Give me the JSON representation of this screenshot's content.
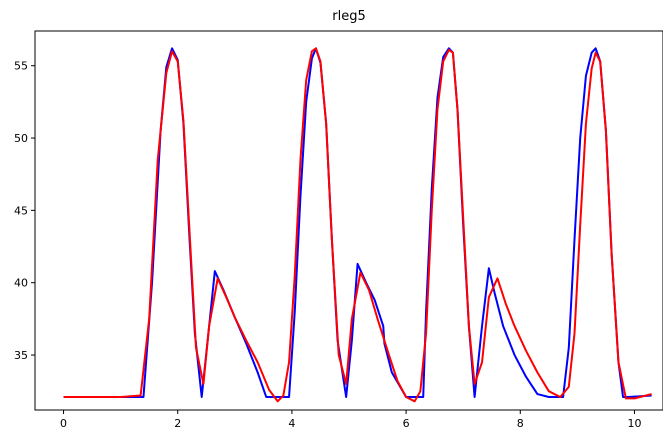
{
  "chart_data": {
    "type": "line",
    "title": "rleg5",
    "xlabel": "",
    "ylabel": "",
    "xlim": [
      -0.5,
      10.5
    ],
    "ylim": [
      31.2,
      57.4
    ],
    "xticks": [
      0,
      2,
      4,
      6,
      8,
      10
    ],
    "yticks": [
      35,
      40,
      45,
      50,
      55
    ],
    "grid": false,
    "series": [
      {
        "color": "#0000ff",
        "x": [
          0,
          1.0,
          1.4,
          1.55,
          1.7,
          1.8,
          1.9,
          2.0,
          2.1,
          2.2,
          2.3,
          2.42,
          2.55,
          2.65,
          2.8,
          3.0,
          3.2,
          3.4,
          3.55,
          3.8,
          3.95,
          4.05,
          4.15,
          4.25,
          4.35,
          4.42,
          4.5,
          4.6,
          4.7,
          4.8,
          4.95,
          5.05,
          5.15,
          5.3,
          5.45,
          5.6,
          5.62,
          5.75,
          6.0,
          6.3,
          6.35,
          6.45,
          6.55,
          6.65,
          6.75,
          6.82,
          6.9,
          7.0,
          7.1,
          7.2,
          7.33,
          7.45,
          7.55,
          7.7,
          7.9,
          8.1,
          8.3,
          8.5,
          8.75,
          8.85,
          8.95,
          9.05,
          9.15,
          9.25,
          9.32,
          9.4,
          9.5,
          9.6,
          9.72,
          9.8,
          9.9,
          10.3
        ],
        "y": [
          32.1,
          32.1,
          32.1,
          40.0,
          50.5,
          54.9,
          56.2,
          55.4,
          51.0,
          43.5,
          36.5,
          32.1,
          37.0,
          40.8,
          39.5,
          37.6,
          35.8,
          33.8,
          32.1,
          32.1,
          32.1,
          38.0,
          46.0,
          52.5,
          55.5,
          56.2,
          55.2,
          51.0,
          43.0,
          36.0,
          32.1,
          36.0,
          41.3,
          40.0,
          38.8,
          37.0,
          35.8,
          33.8,
          32.1,
          32.1,
          38.0,
          46.5,
          52.8,
          55.6,
          56.2,
          55.9,
          52.0,
          44.0,
          37.0,
          32.1,
          37.0,
          41.0,
          39.3,
          37.0,
          35.0,
          33.5,
          32.3,
          32.1,
          32.1,
          35.5,
          43.0,
          50.0,
          54.3,
          55.9,
          56.2,
          55.3,
          50.5,
          42.0,
          34.5,
          32.1,
          32.1,
          32.2
        ]
      },
      {
        "color": "#ff0000",
        "x": [
          0,
          1.0,
          1.35,
          1.5,
          1.65,
          1.8,
          1.9,
          2.0,
          2.1,
          2.2,
          2.32,
          2.45,
          2.55,
          2.7,
          2.85,
          3.0,
          3.2,
          3.4,
          3.6,
          3.75,
          3.85,
          3.95,
          4.05,
          4.15,
          4.25,
          4.35,
          4.42,
          4.5,
          4.6,
          4.7,
          4.82,
          4.95,
          5.05,
          5.2,
          5.35,
          5.5,
          5.7,
          5.85,
          6.0,
          6.15,
          6.25,
          6.35,
          6.45,
          6.55,
          6.65,
          6.75,
          6.82,
          6.9,
          7.0,
          7.1,
          7.2,
          7.33,
          7.45,
          7.6,
          7.75,
          7.9,
          8.1,
          8.3,
          8.5,
          8.7,
          8.85,
          8.95,
          9.05,
          9.15,
          9.25,
          9.32,
          9.4,
          9.5,
          9.6,
          9.72,
          9.85,
          10.0,
          10.3
        ],
        "y": [
          32.1,
          32.1,
          32.2,
          37.5,
          48.5,
          54.5,
          56.0,
          55.3,
          51.2,
          44.0,
          35.5,
          33.0,
          37.0,
          40.3,
          39.0,
          37.6,
          36.0,
          34.5,
          32.6,
          31.8,
          32.2,
          34.5,
          40.5,
          48.5,
          54.0,
          56.0,
          56.2,
          55.3,
          51.0,
          43.0,
          35.0,
          33.0,
          37.5,
          40.7,
          39.5,
          37.5,
          35.0,
          33.2,
          32.1,
          31.8,
          32.5,
          36.5,
          45.0,
          52.0,
          55.3,
          56.1,
          55.9,
          52.0,
          44.5,
          37.0,
          33.0,
          34.5,
          39.0,
          40.3,
          38.5,
          37.0,
          35.3,
          33.8,
          32.5,
          32.1,
          32.8,
          36.5,
          44.0,
          51.0,
          54.8,
          55.9,
          55.3,
          50.5,
          42.0,
          34.5,
          32.0,
          32.0,
          32.3
        ]
      }
    ]
  }
}
